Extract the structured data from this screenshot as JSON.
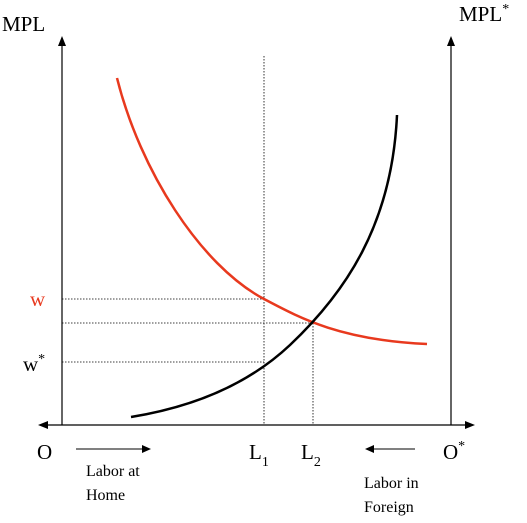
{
  "labels": {
    "mpl": "MPL",
    "mpl_foreign": "MPL",
    "mpl_foreign_sup": "*",
    "wage_home": "w",
    "wage_foreign": "w",
    "wage_foreign_sup": "*",
    "origin_home": "O",
    "origin_foreign": "O",
    "origin_foreign_sup": "*",
    "l1": "L",
    "l1_sub": "1",
    "l2": "L",
    "l2_sub": "2",
    "labor_home_line1": "Labor at",
    "labor_home_line2": "Home",
    "labor_foreign_line1": "Labor in",
    "labor_foreign_line2": "Foreign"
  },
  "colors": {
    "home_curve": "#e8391e",
    "foreign_curve": "#000000",
    "wage_label": "#e8391e",
    "axes": "#000000"
  }
}
